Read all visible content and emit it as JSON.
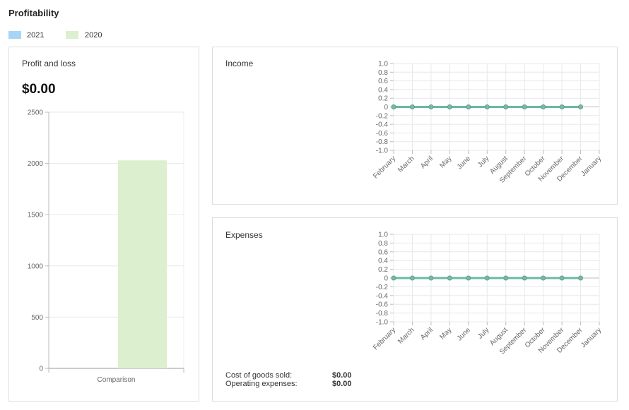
{
  "header": {
    "title": "Profitability"
  },
  "chart_data": [
    {
      "type": "bar",
      "title": "Profit and loss",
      "total": "$0.00",
      "categories": [
        "Comparison"
      ],
      "series": [
        {
          "name": "2021",
          "color": "#a8d4f5",
          "values": [
            0
          ]
        },
        {
          "name": "2020",
          "color": "#dcefcf",
          "values": [
            2030
          ]
        }
      ],
      "ylim": [
        0,
        2500
      ],
      "yticks": [
        0,
        500,
        1000,
        1500,
        2000,
        2500
      ],
      "grid": true
    },
    {
      "type": "line",
      "title": "Income",
      "categories": [
        "February",
        "March",
        "April",
        "May",
        "June",
        "July",
        "August",
        "September",
        "October",
        "November",
        "December",
        "January"
      ],
      "values": [
        0,
        0,
        0,
        0,
        0,
        0,
        0,
        0,
        0,
        0,
        0,
        null
      ],
      "color": "#6bb8a6",
      "ylim": [
        -1,
        1
      ],
      "yticks": [
        {
          "value": 1,
          "label": "1.0"
        },
        0.8,
        0.6,
        0.4,
        0.2,
        0,
        -0.2,
        -0.4,
        -0.6,
        -0.8,
        {
          "value": -1,
          "label": "-1.0"
        }
      ],
      "grid": true
    },
    {
      "type": "line",
      "title": "Expenses",
      "categories": [
        "February",
        "March",
        "April",
        "May",
        "June",
        "July",
        "August",
        "September",
        "October",
        "November",
        "December",
        "January"
      ],
      "values": [
        0,
        0,
        0,
        0,
        0,
        0,
        0,
        0,
        0,
        0,
        0,
        null
      ],
      "color": "#6bb8a6",
      "ylim": [
        -1,
        1
      ],
      "yticks": [
        {
          "value": 1,
          "label": "1.0"
        },
        0.8,
        0.6,
        0.4,
        0.2,
        0,
        -0.2,
        -0.4,
        -0.6,
        -0.8,
        {
          "value": -1,
          "label": "-1.0"
        }
      ],
      "grid": true,
      "summary": [
        {
          "label": "Cost of goods sold:",
          "value": "$0.00"
        },
        {
          "label": "Operating expenses:",
          "value": "$0.00"
        }
      ]
    }
  ]
}
